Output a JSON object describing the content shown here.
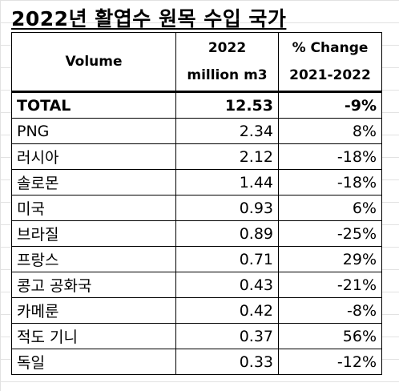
{
  "title": "2022년 활엽수 원목 수입 국가",
  "headers": {
    "volume": "Volume",
    "col2_line1": "2022",
    "col2_line2": "million m3",
    "col3_line1": "% Change",
    "col3_line2": "2021-2022"
  },
  "total": {
    "name": "TOTAL",
    "volume": "12.53",
    "change": "-9%"
  },
  "rows": [
    {
      "name": "PNG",
      "volume": "2.34",
      "change": "8%"
    },
    {
      "name": "러시아",
      "volume": "2.12",
      "change": "-18%"
    },
    {
      "name": "솔로몬",
      "volume": "1.44",
      "change": "-18%"
    },
    {
      "name": "미국",
      "volume": "0.93",
      "change": "6%"
    },
    {
      "name": "브라질",
      "volume": "0.89",
      "change": "-25%"
    },
    {
      "name": "프랑스",
      "volume": "0.71",
      "change": "29%"
    },
    {
      "name": "콩고 공화국",
      "volume": "0.43",
      "change": "-21%"
    },
    {
      "name": "카메룬",
      "volume": "0.42",
      "change": "-8%"
    },
    {
      "name": "적도 기니",
      "volume": "0.37",
      "change": "56%"
    },
    {
      "name": "독일",
      "volume": "0.33",
      "change": "-12%"
    }
  ]
}
